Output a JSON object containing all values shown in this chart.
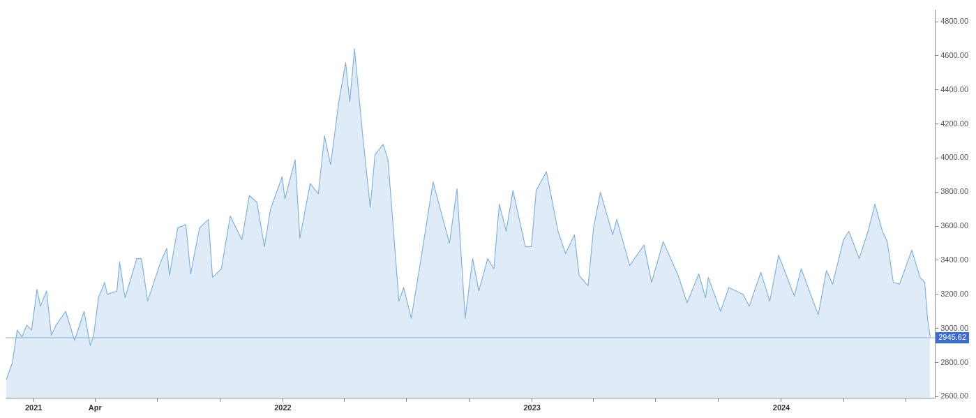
{
  "chart_data": {
    "type": "area",
    "grid": false,
    "legend": false,
    "xlim": [
      "2020-11-21",
      "2024-08-13"
    ],
    "ylim": [
      2590,
      4870
    ],
    "xticks": [
      {
        "value": "2021-01-01",
        "label": "2021"
      },
      {
        "value": "2021-04-01",
        "label": "Apr"
      },
      {
        "value": "2021-07-01",
        "label": null
      },
      {
        "value": "2021-10-01",
        "label": null
      },
      {
        "value": "2022-01-01",
        "label": "2022"
      },
      {
        "value": "2022-04-01",
        "label": null
      },
      {
        "value": "2022-07-01",
        "label": null
      },
      {
        "value": "2022-10-01",
        "label": null
      },
      {
        "value": "2023-01-01",
        "label": "2023"
      },
      {
        "value": "2023-04-01",
        "label": null
      },
      {
        "value": "2023-07-01",
        "label": null
      },
      {
        "value": "2023-10-01",
        "label": null
      },
      {
        "value": "2024-01-01",
        "label": "2024"
      },
      {
        "value": "2024-04-01",
        "label": null
      },
      {
        "value": "2024-07-01",
        "label": null
      }
    ],
    "yticks": [
      {
        "value": 2600,
        "label": "2600.00"
      },
      {
        "value": 2800,
        "label": "2800.00"
      },
      {
        "value": 3000,
        "label": "3000.00"
      },
      {
        "value": 3200,
        "label": "3200.00"
      },
      {
        "value": 3400,
        "label": "3400.00"
      },
      {
        "value": 3600,
        "label": "3600.00"
      },
      {
        "value": 3800,
        "label": "3800.00"
      },
      {
        "value": 4000,
        "label": "4000.00"
      },
      {
        "value": 4200,
        "label": "4200.00"
      },
      {
        "value": 4400,
        "label": "4400.00"
      },
      {
        "value": 4600,
        "label": "4600.00"
      },
      {
        "value": 4800,
        "label": "4800.00"
      }
    ],
    "ref_lines": [
      {
        "axis": "y",
        "value": 2945.62,
        "label": "2945.62",
        "color": "#7fb3e0"
      }
    ],
    "series": [
      {
        "color": "#7fb3e0",
        "x": [
          "2020-11-22",
          "2020-12-01",
          "2020-12-08",
          "2020-12-15",
          "2020-12-22",
          "2020-12-29",
          "2021-01-06",
          "2021-01-11",
          "2021-01-20",
          "2021-01-27",
          "2021-02-03",
          "2021-02-17",
          "2021-03-02",
          "2021-03-16",
          "2021-03-25",
          "2021-03-30",
          "2021-04-06",
          "2021-04-15",
          "2021-04-19",
          "2021-05-03",
          "2021-05-07",
          "2021-05-15",
          "2021-06-01",
          "2021-06-08",
          "2021-06-17",
          "2021-07-06",
          "2021-07-15",
          "2021-07-19",
          "2021-07-31",
          "2021-08-12",
          "2021-08-19",
          "2021-09-01",
          "2021-09-14",
          "2021-09-20",
          "2021-10-03",
          "2021-10-16",
          "2021-11-02",
          "2021-11-13",
          "2021-11-24",
          "2021-12-05",
          "2021-12-14",
          "2021-12-31",
          "2022-01-04",
          "2022-01-19",
          "2022-01-26",
          "2022-02-10",
          "2022-02-22",
          "2022-03-03",
          "2022-03-12",
          "2022-03-24",
          "2022-04-03",
          "2022-04-09",
          "2022-04-16",
          "2022-04-28",
          "2022-05-09",
          "2022-05-16",
          "2022-05-28",
          "2022-06-04",
          "2022-06-20",
          "2022-06-27",
          "2022-07-08",
          "2022-07-20",
          "2022-08-09",
          "2022-08-19",
          "2022-09-02",
          "2022-09-13",
          "2022-09-25",
          "2022-10-06",
          "2022-10-15",
          "2022-10-28",
          "2022-11-06",
          "2022-11-14",
          "2022-11-24",
          "2022-12-04",
          "2022-12-22",
          "2022-12-31",
          "2023-01-07",
          "2023-01-22",
          "2023-02-08",
          "2023-02-19",
          "2023-03-04",
          "2023-03-11",
          "2023-03-24",
          "2023-04-01",
          "2023-04-11",
          "2023-04-29",
          "2023-05-05",
          "2023-05-24",
          "2023-06-14",
          "2023-06-25",
          "2023-07-12",
          "2023-08-03",
          "2023-08-16",
          "2023-09-02",
          "2023-09-12",
          "2023-09-16",
          "2023-10-04",
          "2023-10-16",
          "2023-11-06",
          "2023-11-15",
          "2023-12-02",
          "2023-12-15",
          "2023-12-28",
          "2024-01-20",
          "2024-01-30",
          "2024-02-24",
          "2024-03-07",
          "2024-03-16",
          "2024-04-01",
          "2024-04-09",
          "2024-04-24",
          "2024-05-07",
          "2024-05-17",
          "2024-05-28",
          "2024-06-04",
          "2024-06-13",
          "2024-06-22",
          "2024-07-10",
          "2024-07-22",
          "2024-07-29",
          "2024-08-02",
          "2024-08-06"
        ],
        "values": [
          2700,
          2800,
          2990,
          2950,
          3020,
          2990,
          3230,
          3130,
          3220,
          2960,
          3020,
          3100,
          2930,
          3100,
          2900,
          2960,
          3180,
          3270,
          3200,
          3220,
          3390,
          3180,
          3410,
          3410,
          3160,
          3390,
          3470,
          3310,
          3590,
          3610,
          3320,
          3590,
          3640,
          3300,
          3350,
          3660,
          3520,
          3780,
          3740,
          3480,
          3700,
          3890,
          3760,
          3990,
          3530,
          3850,
          3790,
          4130,
          3960,
          4330,
          4560,
          4330,
          4640,
          4130,
          3710,
          4020,
          4080,
          3990,
          3160,
          3240,
          3060,
          3350,
          3860,
          3710,
          3500,
          3820,
          3060,
          3410,
          3220,
          3410,
          3350,
          3730,
          3570,
          3810,
          3480,
          3480,
          3810,
          3920,
          3570,
          3440,
          3550,
          3310,
          3250,
          3590,
          3800,
          3550,
          3640,
          3370,
          3490,
          3270,
          3510,
          3310,
          3150,
          3320,
          3180,
          3300,
          3100,
          3240,
          3200,
          3130,
          3330,
          3160,
          3430,
          3190,
          3350,
          3080,
          3340,
          3260,
          3520,
          3570,
          3410,
          3570,
          3730,
          3570,
          3510,
          3270,
          3260,
          3460,
          3300,
          3270,
          3060,
          2950
        ]
      }
    ]
  }
}
